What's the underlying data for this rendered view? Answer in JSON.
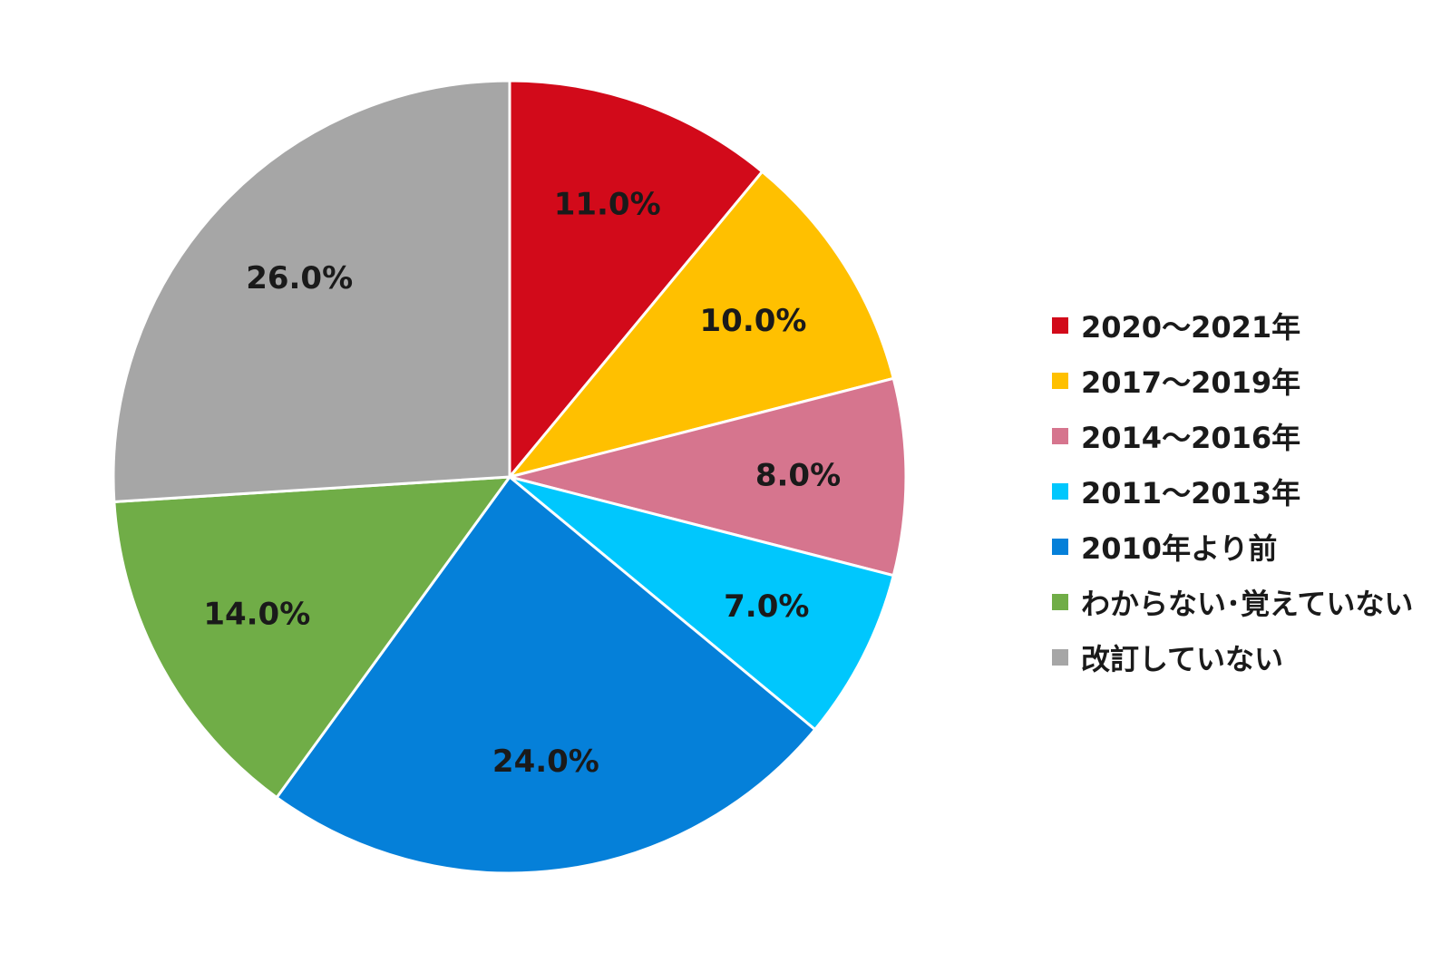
{
  "chart_data": {
    "type": "pie",
    "title": "",
    "start_angle_deg": 0,
    "direction": "clockwise",
    "legend_position": "right",
    "value_unit": "%",
    "slices": [
      {
        "label": "2020～2021年",
        "value": 11.0,
        "display": "11.0%",
        "color": "#d20a1a"
      },
      {
        "label": "2017～2019年",
        "value": 10.0,
        "display": "10.0%",
        "color": "#ffc000"
      },
      {
        "label": "2014～2016年",
        "value": 8.0,
        "display": "8.0%",
        "color": "#d6758e"
      },
      {
        "label": "2011～2013年",
        "value": 7.0,
        "display": "7.0%",
        "color": "#00c7fd"
      },
      {
        "label": "2010年より前",
        "value": 24.0,
        "display": "24.0%",
        "color": "#0580d9"
      },
      {
        "label": "わからない･覚えていない",
        "value": 14.0,
        "display": "14.0%",
        "color": "#70ad47"
      },
      {
        "label": "改訂していない",
        "value": 26.0,
        "display": "26.0%",
        "color": "#a6a6a6"
      }
    ]
  }
}
